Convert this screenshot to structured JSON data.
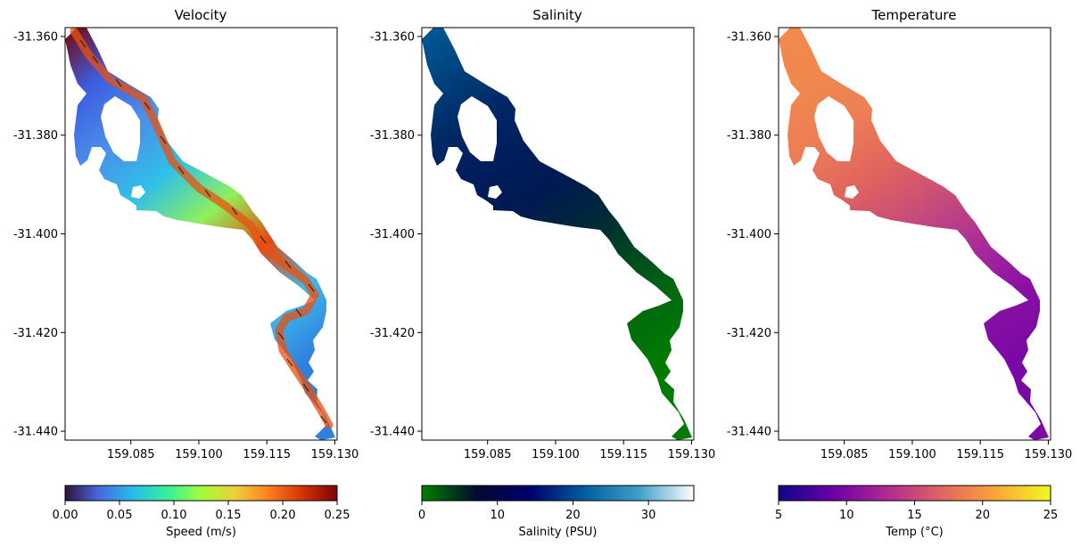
{
  "chart_data": [
    {
      "type": "heatmap",
      "title": "Velocity",
      "xlabel": "",
      "ylabel": "",
      "x_ticks": [
        159.085,
        159.1,
        159.115,
        159.13
      ],
      "x_tick_labels": [
        "159.085",
        "159.100",
        "159.115",
        "159.130"
      ],
      "y_ticks": [
        -31.36,
        -31.38,
        -31.4,
        -31.42,
        -31.44
      ],
      "y_tick_labels": [
        "-31.360",
        "-31.380",
        "-31.400",
        "-31.420",
        "-31.440"
      ],
      "xlim": [
        159.0705,
        159.1305
      ],
      "ylim": [
        -31.4418,
        -31.3582
      ],
      "has_quiver": true,
      "colormap": "turbo",
      "colorbar": {
        "label": "Speed (m/s)",
        "range": [
          0,
          0.25
        ],
        "ticks": [
          0,
          0.05,
          0.1,
          0.15,
          0.2,
          0.25
        ],
        "tick_labels": [
          "0.00",
          "0.05",
          "0.10",
          "0.15",
          "0.20",
          "0.25"
        ],
        "colors": [
          "#30123b",
          "#4669e0",
          "#28bceb",
          "#32f298",
          "#a4fc3c",
          "#eecf3a",
          "#fb7e21",
          "#d23105",
          "#7a0403"
        ]
      }
    },
    {
      "type": "heatmap",
      "title": "Salinity",
      "xlabel": "",
      "ylabel": "",
      "x_ticks": [
        159.085,
        159.1,
        159.115,
        159.13
      ],
      "x_tick_labels": [
        "159.085",
        "159.100",
        "159.115",
        "159.130"
      ],
      "y_ticks": [
        -31.36,
        -31.38,
        -31.4,
        -31.42,
        -31.44
      ],
      "y_tick_labels": [
        "-31.360",
        "-31.380",
        "-31.400",
        "-31.420",
        "-31.440"
      ],
      "xlim": [
        159.0705,
        159.1305
      ],
      "ylim": [
        -31.4418,
        -31.3582
      ],
      "colormap": "ocean",
      "colorbar": {
        "label": "Salinity (PSU)",
        "range": [
          0,
          36
        ],
        "ticks": [
          0,
          10,
          20,
          30
        ],
        "tick_labels": [
          "0",
          "10",
          "20",
          "30"
        ],
        "colors": [
          "#008000",
          "#000b2e",
          "#00006e",
          "#0060a0",
          "#40a0c8",
          "#ffffff"
        ]
      }
    },
    {
      "type": "heatmap",
      "title": "Temperature",
      "xlabel": "",
      "ylabel": "",
      "x_ticks": [
        159.085,
        159.1,
        159.115,
        159.13
      ],
      "x_tick_labels": [
        "159.085",
        "159.100",
        "159.115",
        "159.130"
      ],
      "y_ticks": [
        -31.36,
        -31.38,
        -31.4,
        -31.42,
        -31.44
      ],
      "y_tick_labels": [
        "-31.360",
        "-31.380",
        "-31.400",
        "-31.420",
        "-31.440"
      ],
      "xlim": [
        159.0705,
        159.1305
      ],
      "ylim": [
        -31.4418,
        -31.3582
      ],
      "colormap": "plasma",
      "colorbar": {
        "label": "Temp (°C)",
        "range": [
          5,
          25
        ],
        "ticks": [
          5,
          10,
          15,
          20,
          25
        ],
        "tick_labels": [
          "5",
          "10",
          "15",
          "20",
          "25"
        ],
        "colors": [
          "#0d0887",
          "#6a00a8",
          "#b12a90",
          "#e16462",
          "#fca636",
          "#f0f921"
        ]
      }
    }
  ]
}
